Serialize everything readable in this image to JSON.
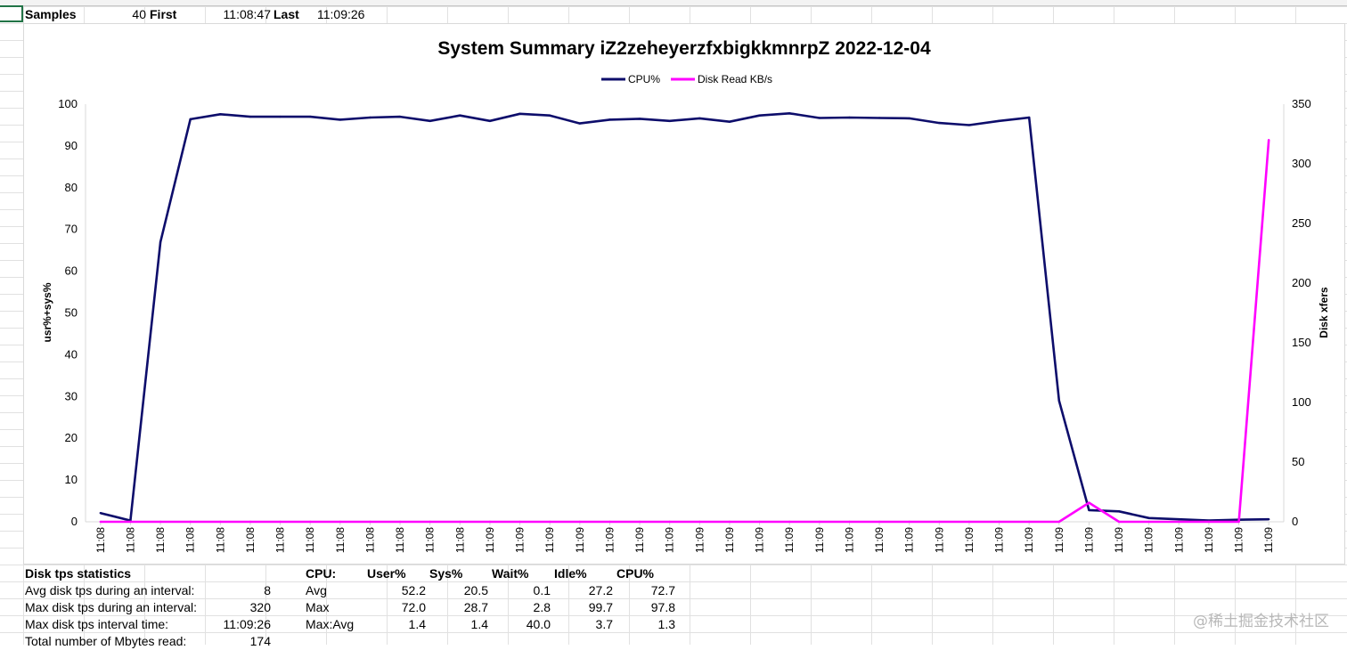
{
  "header_row": {
    "samples_label": "Samples",
    "samples_value": "40",
    "first_label": "First",
    "first_value": "11:08:47",
    "last_label": "Last",
    "last_value": "11:09:26"
  },
  "chart_data": {
    "type": "line",
    "title": "System Summary iZ2zeheyerzfxbigkkmnrpZ  2022-12-04",
    "ylabel": "usr%+sys%",
    "y2label": "Disk xfers",
    "ylim": [
      0,
      100
    ],
    "y2lim": [
      0,
      350
    ],
    "yticks": [
      "0",
      "10",
      "20",
      "30",
      "40",
      "50",
      "60",
      "70",
      "80",
      "90",
      "100"
    ],
    "y2ticks": [
      "0",
      "50",
      "100",
      "150",
      "200",
      "250",
      "300",
      "350"
    ],
    "legend_position": "top-center",
    "categories": [
      "11:08",
      "11:08",
      "11:08",
      "11:08",
      "11:08",
      "11:08",
      "11:08",
      "11:08",
      "11:08",
      "11:08",
      "11:08",
      "11:08",
      "11:08",
      "11:09",
      "11:09",
      "11:09",
      "11:09",
      "11:09",
      "11:09",
      "11:09",
      "11:09",
      "11:09",
      "11:09",
      "11:09",
      "11:09",
      "11:09",
      "11:09",
      "11:09",
      "11:09",
      "11:09",
      "11:09",
      "11:09",
      "11:09",
      "11:09",
      "11:09",
      "11:09",
      "11:09",
      "11:09",
      "11:09",
      "11:09"
    ],
    "series": [
      {
        "name": "CPU%",
        "axis": "left",
        "color": "#0d0d6b",
        "values": [
          2.1,
          0.3,
          67.0,
          96.4,
          97.6,
          97.0,
          97.0,
          97.0,
          96.3,
          96.8,
          97.0,
          96.0,
          97.3,
          96.0,
          97.7,
          97.3,
          95.4,
          96.3,
          96.5,
          96.0,
          96.6,
          95.8,
          97.3,
          97.8,
          96.7,
          96.8,
          96.7,
          96.6,
          95.5,
          95.0,
          96.0,
          96.8,
          29.0,
          2.8,
          2.5,
          0.9,
          0.6,
          0.3,
          0.5,
          0.6
        ]
      },
      {
        "name": "Disk Read KB/s",
        "axis": "right",
        "color": "#ff00ff",
        "values": [
          0,
          0,
          0,
          0,
          0,
          0,
          0,
          0,
          0,
          0,
          0,
          0,
          0,
          0,
          0,
          0,
          0,
          0,
          0,
          0,
          0,
          0,
          0,
          0,
          0,
          0,
          0,
          0,
          0,
          0,
          0,
          0,
          0,
          16,
          0,
          0,
          0,
          0,
          0,
          320
        ]
      }
    ]
  },
  "disk_stats": {
    "title": "Disk tps statistics",
    "rows": [
      {
        "label": "Avg disk tps during an interval:",
        "value": "8"
      },
      {
        "label": "Max disk tps during an interval:",
        "value": "320"
      },
      {
        "label": "Max disk tps interval time:",
        "value": "11:09:26"
      },
      {
        "label": "Total number of Mbytes read:",
        "value": "174"
      }
    ]
  },
  "cpu_stats": {
    "headers": [
      "CPU:",
      "User%",
      "Sys%",
      "Wait%",
      "Idle%",
      "CPU%"
    ],
    "rows": [
      [
        "Avg",
        "52.2",
        "20.5",
        "0.1",
        "27.2",
        "72.7"
      ],
      [
        "Max",
        "72.0",
        "28.7",
        "2.8",
        "99.7",
        "97.8"
      ],
      [
        "Max:Avg",
        "1.4",
        "1.4",
        "40.0",
        "3.7",
        "1.3"
      ]
    ]
  },
  "watermark": "@稀土掘金技术社区"
}
